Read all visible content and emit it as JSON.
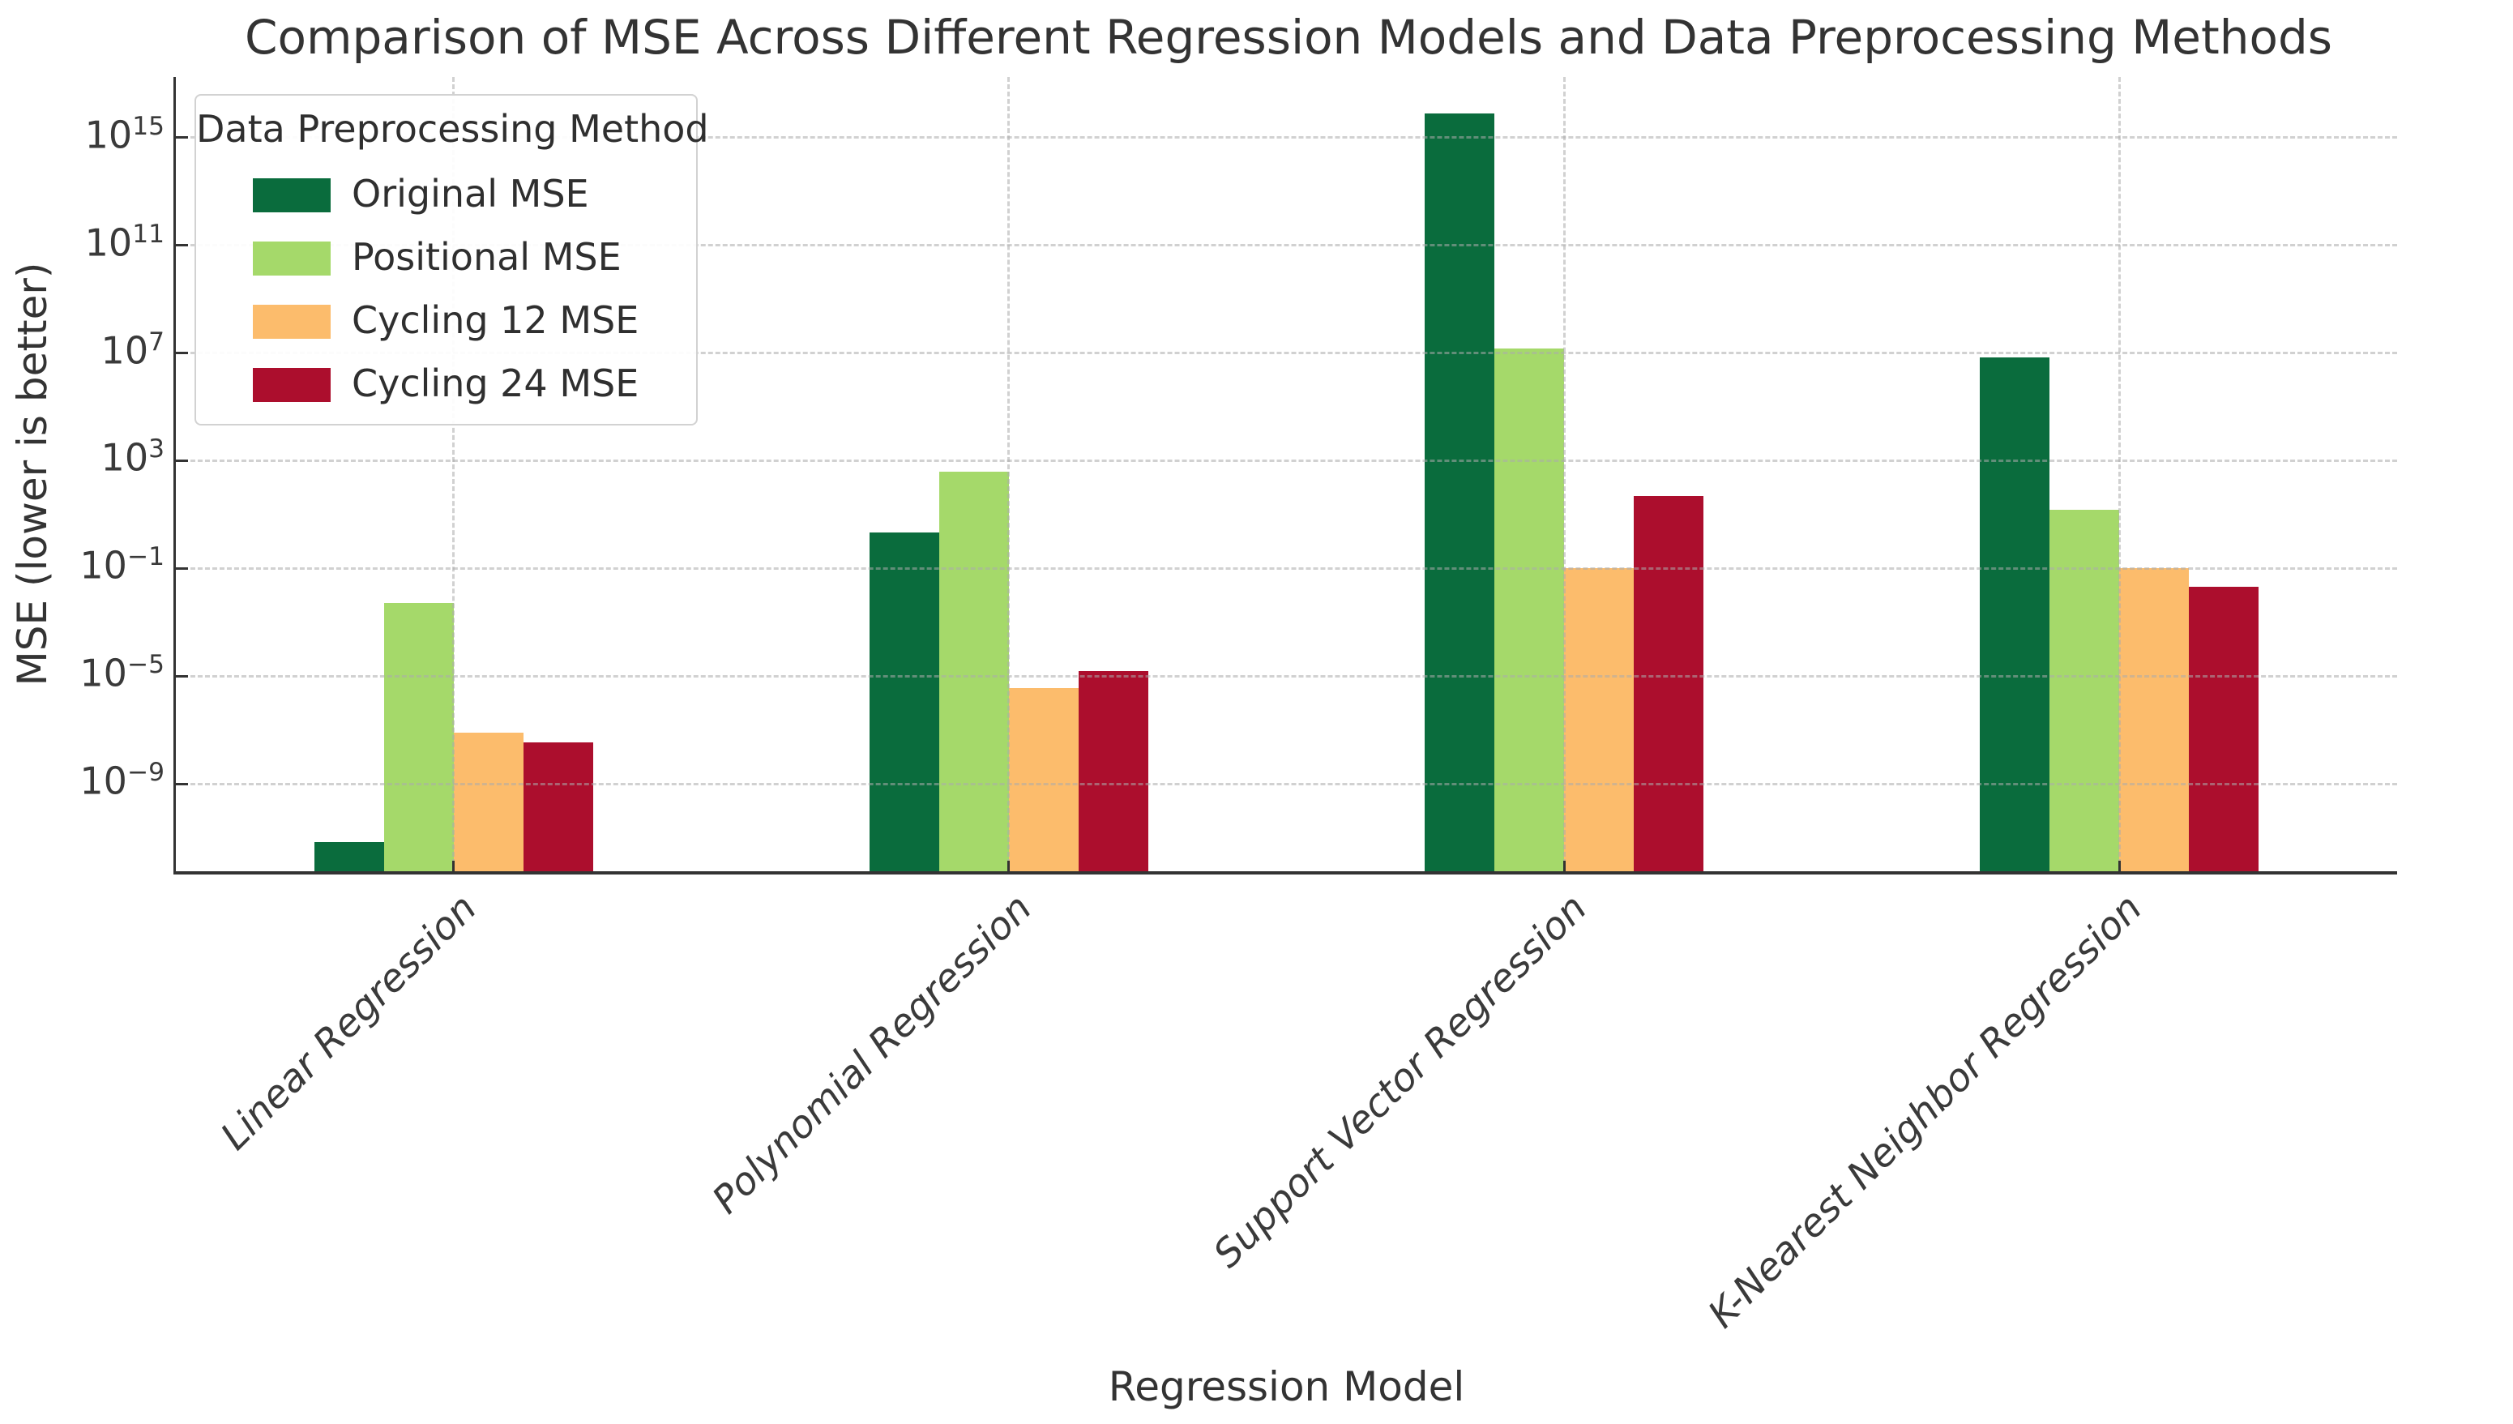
{
  "chart_data": {
    "type": "bar",
    "title": "Comparison of MSE Across Different Regression Models and Data Preprocessing Methods",
    "xlabel": "Regression Model",
    "ylabel": "MSE (lower is better)",
    "legend_title": "Data Preprocessing Method",
    "legend_position": "upper left",
    "y_scale": "log",
    "y_tick_exponents": [
      15,
      11,
      7,
      3,
      -1,
      -5,
      -9
    ],
    "y_axis_range_log10": [
      -12.25,
      17.25
    ],
    "grid": "dashed gray, horizontal and vertical, drawn over bars",
    "categories": [
      "Linear Regression",
      "Polynomial Regression",
      "Support Vector Regression",
      "K-Nearest Neighbor Regression"
    ],
    "series": [
      {
        "name": "Original MSE",
        "color": "#0a6c3d",
        "values": [
          7e-12,
          2.1,
          8000000000000000.0,
          7000000.0
        ]
      },
      {
        "name": "Positional MSE",
        "color": "#a5d96a",
        "values": [
          0.005,
          380,
          15000000.0,
          15
        ]
      },
      {
        "name": "Cycling 12 MSE",
        "color": "#fcbc6c",
        "values": [
          8e-08,
          3.5e-06,
          0.1,
          0.1
        ]
      },
      {
        "name": "Cycling 24 MSE",
        "color": "#ac0e2d",
        "values": [
          3.5e-08,
          1.5e-05,
          50,
          0.02
        ]
      }
    ]
  }
}
